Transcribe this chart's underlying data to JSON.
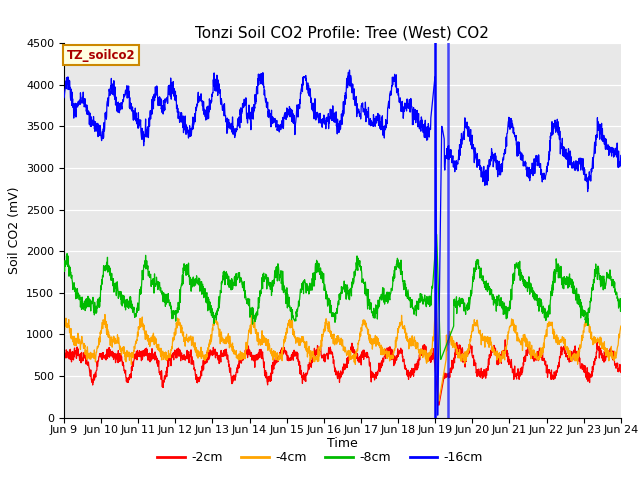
{
  "title": "Tonzi Soil CO2 Profile: Tree (West) CO2",
  "ylabel": "Soil CO2 (mV)",
  "xlabel": "Time",
  "box_label": "TZ_soilco2",
  "ylim": [
    0,
    4500
  ],
  "colors": {
    "-2cm": "#ff0000",
    "-4cm": "#ffa500",
    "-8cm": "#00bb00",
    "-16cm": "#0000ff"
  },
  "legend_labels": [
    "-2cm",
    "-4cm",
    "-8cm",
    "-16cm"
  ],
  "background_color": "#e8e8e8",
  "figure_color": "#ffffff",
  "spike_day": 10.0,
  "spike_day2": 10.35,
  "title_fontsize": 11,
  "axis_label_fontsize": 9,
  "tick_fontsize": 8,
  "tick_labels": [
    "Jun 9",
    "Jun 10",
    "Jun 11",
    "Jun 12",
    "Jun 13",
    "Jun 14",
    "Jun 15",
    "Jun 16",
    "Jun 17",
    "Jun 18",
    "Jun 19",
    "Jun 20",
    "Jun 21",
    "Jun 22",
    "Jun 23",
    "Jun 24"
  ]
}
